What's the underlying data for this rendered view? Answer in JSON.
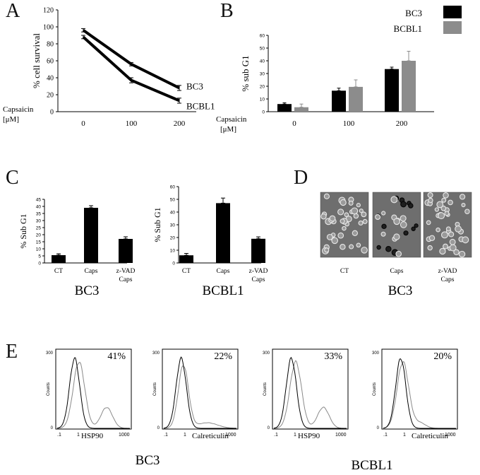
{
  "panels": {
    "A": "A",
    "B": "B",
    "C": "C",
    "D": "D",
    "E": "E"
  },
  "colors": {
    "bc3": "#000000",
    "bcbl1": "#8c8c8c",
    "bar_c": "#000000"
  },
  "chart_data": [
    {
      "id": "A",
      "type": "line",
      "ylabel": "% cell survival",
      "xlabel": "Capsaicin [μM]",
      "xlabel_line1": "Capsaicin",
      "xlabel_line2": "[μM]",
      "categories": [
        "0",
        "100",
        "200"
      ],
      "ylim": [
        0,
        120
      ],
      "yticks": [
        "0",
        "20",
        "40",
        "60",
        "80",
        "100",
        "120"
      ],
      "series": [
        {
          "name": "BC3",
          "values": [
            96,
            56,
            28
          ],
          "errors": [
            2,
            2,
            3
          ]
        },
        {
          "name": "BCBL1",
          "values": [
            88,
            37,
            13
          ],
          "errors": [
            2,
            3,
            3
          ]
        }
      ]
    },
    {
      "id": "B",
      "type": "bar",
      "ylabel": "% sub G1",
      "xlabel_line1": "Capsaicin",
      "xlabel_line2": "[μM]",
      "categories": [
        "0",
        "100",
        "200"
      ],
      "ylim": [
        0,
        60
      ],
      "yticks": [
        "0",
        "10",
        "20",
        "30",
        "40",
        "50",
        "60"
      ],
      "legend": [
        "BC3",
        "BCBL1"
      ],
      "series": [
        {
          "name": "BC3",
          "values": [
            6,
            16.5,
            33.5
          ],
          "errors": [
            1,
            2,
            1.5
          ]
        },
        {
          "name": "BCBL1",
          "values": [
            3.5,
            19.5,
            40
          ],
          "errors": [
            2.5,
            5.5,
            7.5
          ]
        }
      ]
    },
    {
      "id": "C-BC3",
      "type": "bar",
      "ylabel": "% Sub G1",
      "categories": [
        "CT",
        "Caps",
        "z-VAD Caps"
      ],
      "category_lines": [
        [
          "CT"
        ],
        [
          "Caps"
        ],
        [
          "z-VAD",
          "Caps"
        ]
      ],
      "ylim": [
        0,
        45
      ],
      "yticks": [
        "0",
        "5",
        "10",
        "15",
        "20",
        "25",
        "30",
        "35",
        "40",
        "45"
      ],
      "values": [
        5.5,
        39,
        17
      ],
      "errors": [
        1,
        1.5,
        1.5
      ],
      "caption": "BC3"
    },
    {
      "id": "C-BCBL1",
      "type": "bar",
      "ylabel": "% Sub G1",
      "categories": [
        "CT",
        "Caps",
        "z-VAD Caps"
      ],
      "category_lines": [
        [
          "CT"
        ],
        [
          "Caps"
        ],
        [
          "z-VAD",
          "Caps"
        ]
      ],
      "ylim": [
        0,
        60
      ],
      "yticks": [
        "0",
        "10",
        "20",
        "30",
        "40",
        "50",
        "60"
      ],
      "values": [
        6,
        47,
        19
      ],
      "errors": [
        1.5,
        4,
        1.5
      ],
      "caption": "BCBL1"
    }
  ],
  "panel_d": {
    "captions": [
      "CT",
      "Caps",
      "z-VAD Caps"
    ],
    "caption_lines": [
      [
        "CT"
      ],
      [
        "Caps"
      ],
      [
        "z-VAD",
        "Caps"
      ]
    ],
    "cell_line": "BC3"
  },
  "panel_e": {
    "histograms": [
      {
        "percent": "41%",
        "marker": "HSP90",
        "group": "BC3"
      },
      {
        "percent": "22%",
        "marker": "Calreticulin",
        "group": "BC3"
      },
      {
        "percent": "33%",
        "marker": "HSP90",
        "group": "BCBL1"
      },
      {
        "percent": "20%",
        "marker": "Calreticulin",
        "group": "BCBL1"
      }
    ],
    "yaxis_label": "Counts",
    "ytick_top": "300",
    "ytick_bottom": "0",
    "xticks": [
      ".1",
      "1",
      "1000"
    ],
    "groups": [
      "BC3",
      "BCBL1"
    ]
  }
}
